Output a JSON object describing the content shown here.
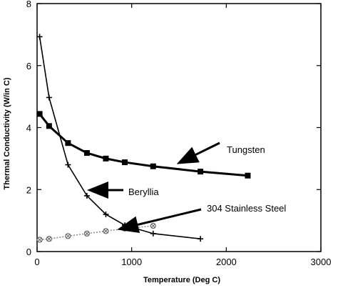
{
  "chart_data": {
    "type": "line",
    "title": "",
    "xlabel": "Temperature (Deg C)",
    "ylabel": "Thermal Conductivity (W/in C)",
    "xlim": [
      0,
      3000
    ],
    "ylim": [
      0,
      8
    ],
    "xticks": [
      "0",
      "1000",
      "2000",
      "3000"
    ],
    "yticks": [
      "0",
      "2",
      "4",
      "6",
      "8"
    ],
    "grid": false,
    "legend": "none",
    "series": [
      {
        "name": "Tungsten",
        "marker": "square",
        "color": "#000000",
        "x": [
          27,
          127,
          327,
          527,
          727,
          927,
          1227,
          1727,
          2227
        ],
        "y": [
          4.44,
          4.05,
          3.5,
          3.18,
          3.0,
          2.88,
          2.75,
          2.58,
          2.45
        ]
      },
      {
        "name": "Beryllia",
        "marker": "plus",
        "color": "#000000",
        "x": [
          27,
          127,
          327,
          527,
          727,
          927,
          1227,
          1727
        ],
        "y": [
          6.93,
          4.97,
          2.8,
          1.8,
          1.2,
          0.85,
          0.58,
          0.41
        ]
      },
      {
        "name": "304 Stainless Steel",
        "marker": "cross",
        "color": "#888888",
        "x": [
          27,
          127,
          327,
          527,
          727,
          927,
          1227
        ],
        "y": [
          0.38,
          0.41,
          0.5,
          0.58,
          0.66,
          0.74,
          0.83
        ]
      }
    ],
    "annotations": [
      {
        "text": "Tungsten",
        "points_to": "Tungsten"
      },
      {
        "text": "Beryllia",
        "points_to": "Beryllia"
      },
      {
        "text": "304 Stainless Steel",
        "points_to": "304 Stainless Steel"
      }
    ]
  }
}
